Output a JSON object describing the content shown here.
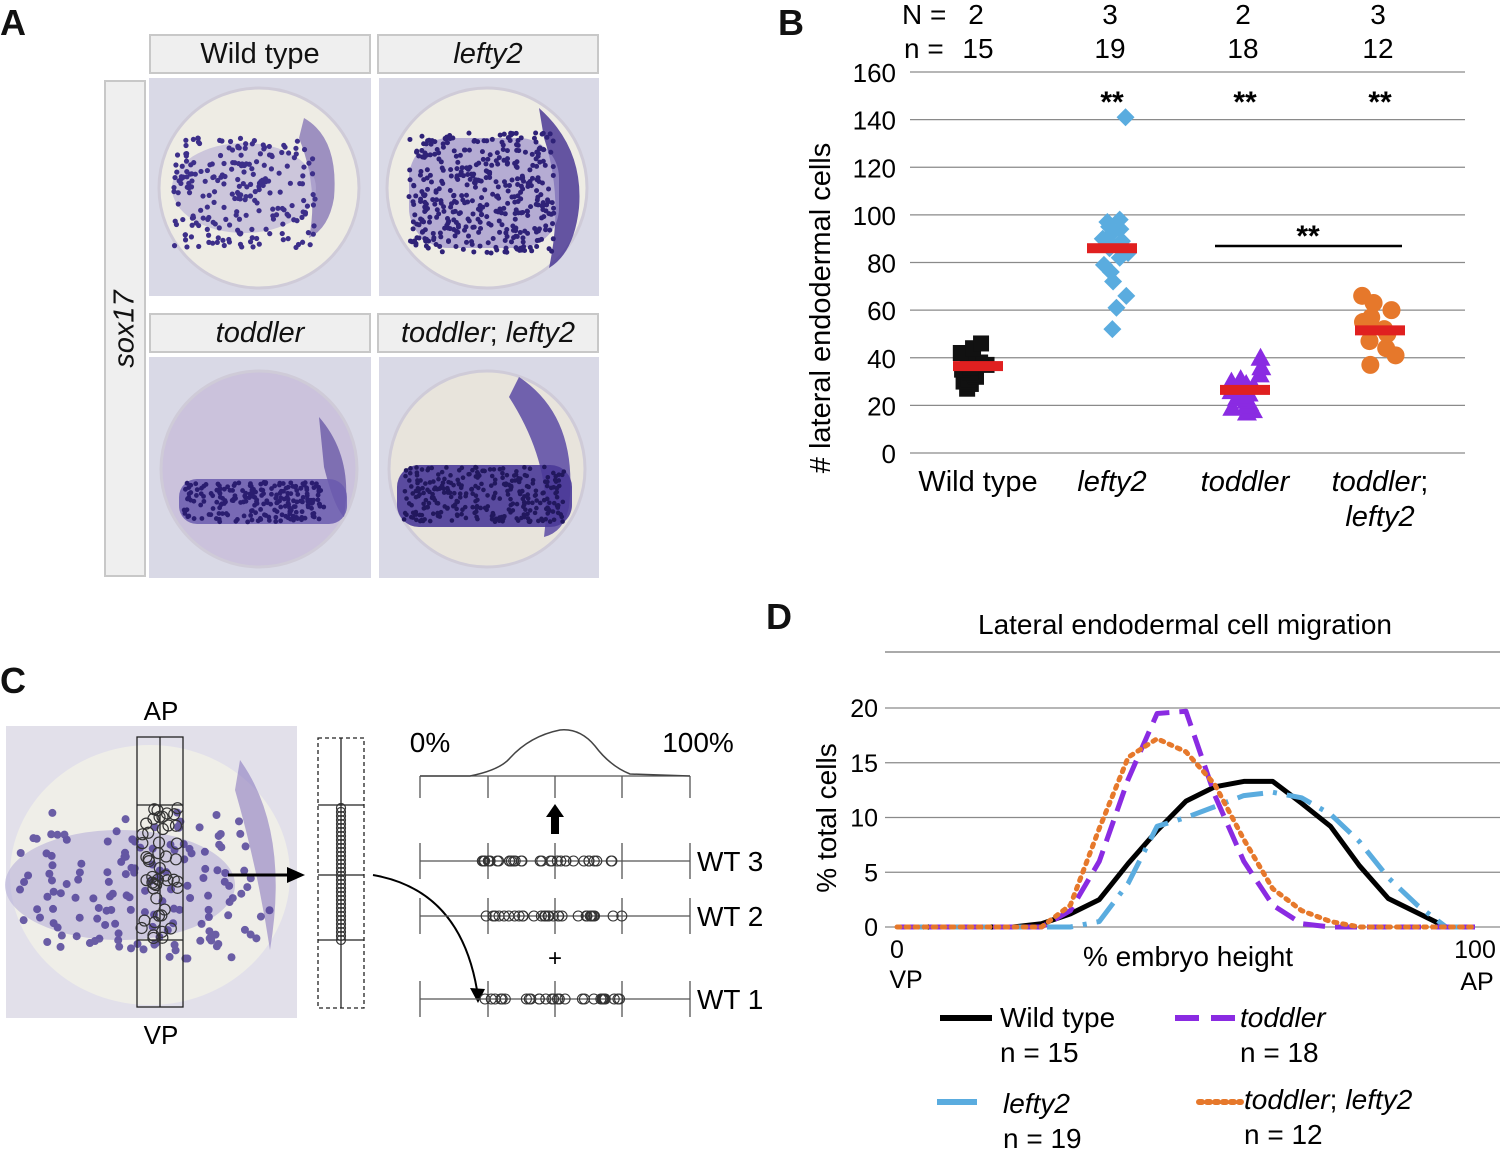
{
  "panels": {
    "a": "A",
    "b": "B",
    "c": "C",
    "d": "D"
  },
  "panel_a": {
    "side_label": "sox17",
    "headers": [
      {
        "text": "Wild type"
      },
      {
        "text": "lefty2"
      },
      {
        "text": "toddler"
      },
      {
        "main": "toddler",
        "sep": "; ",
        "second": "lefty2"
      }
    ]
  },
  "panel_c": {
    "ap": "AP",
    "vp": "VP",
    "pct0": "0%",
    "pct100": "100%",
    "plus": "+",
    "rows": [
      "WT 3",
      "WT 2",
      "WT 1"
    ]
  },
  "chart_data": [
    {
      "type": "scatter",
      "title": "",
      "xlabel": "",
      "ylabel": "# lateral endodermal cells",
      "ylim": [
        0,
        160
      ],
      "yticks": [
        0,
        20,
        40,
        60,
        80,
        100,
        120,
        140,
        160
      ],
      "grid": true,
      "header_labels": {
        "N": "N =",
        "n": "n ="
      },
      "categories": [
        {
          "label": "Wild type",
          "italic": false
        },
        {
          "label": "lefty2",
          "italic": true
        },
        {
          "label": "toddler",
          "italic": true
        },
        {
          "label_main": "toddler",
          "label_sep": ";",
          "label_second": "lefty2",
          "italic": true
        }
      ],
      "N": [
        "2",
        "3",
        "2",
        "3"
      ],
      "n": [
        "15",
        "19",
        "18",
        "12"
      ],
      "significance": [
        "",
        "**",
        "**",
        "**"
      ],
      "comparison": {
        "from": 2,
        "to": 3,
        "label": "**"
      },
      "series": [
        {
          "marker": "square",
          "color": "#111111",
          "mean": 36.5,
          "values": [
            27,
            29,
            30,
            31,
            32,
            33,
            34,
            35,
            36,
            37,
            38,
            40,
            42,
            44,
            46
          ]
        },
        {
          "marker": "diamond",
          "color": "#5aacdf",
          "mean": 86,
          "values": [
            141,
            52,
            61,
            66,
            72,
            76,
            79,
            82,
            84,
            86,
            87,
            88,
            89,
            90,
            92,
            94,
            95,
            97,
            98
          ]
        },
        {
          "marker": "triangle",
          "color": "#8a2be2",
          "mean": 26.5,
          "values": [
            17,
            18,
            19,
            20,
            21,
            22,
            23,
            24,
            25,
            26,
            27,
            28,
            29,
            30,
            31,
            33,
            36,
            40
          ]
        },
        {
          "marker": "circle",
          "color": "#e6782b",
          "mean": 51.5,
          "values": [
            37,
            41,
            44,
            47,
            50,
            52,
            53,
            55,
            57,
            60,
            63,
            66
          ]
        }
      ],
      "mean_color": "#e02020"
    },
    {
      "type": "line",
      "title": "Lateral endodermal cell migration",
      "xlabel": "% embryo height",
      "ylabel": "% total cells",
      "xlim": [
        0,
        100
      ],
      "ylim": [
        0,
        20
      ],
      "yticks": [
        0,
        5,
        10,
        15,
        20
      ],
      "x_tick_labels": {
        "min": "0",
        "max": "100",
        "min_sub": "VP",
        "max_sub": "AP"
      },
      "grid": true,
      "legend": [
        {
          "name": "Wild type",
          "italic": false,
          "n": "n = 15"
        },
        {
          "name": "toddler",
          "italic": true,
          "n": "n = 18"
        },
        {
          "name": "lefty2",
          "italic": true,
          "n": "n = 19"
        },
        {
          "name_main": "toddler",
          "name_sep": ";",
          "name_second": "lefty2",
          "italic": true,
          "n": "n = 12"
        }
      ],
      "x": [
        0,
        5,
        10,
        15,
        20,
        25,
        30,
        35,
        40,
        45,
        50,
        55,
        60,
        65,
        70,
        75,
        80,
        85,
        90,
        95,
        100
      ],
      "series": [
        {
          "name": "Wild type",
          "color": "#000000",
          "dash": "solid",
          "values": [
            0,
            0,
            0,
            0,
            0,
            0.3,
            1.2,
            2.5,
            5.8,
            8.8,
            11.5,
            12.8,
            13.3,
            13.3,
            11.3,
            9.2,
            5.6,
            2.6,
            1.3,
            0,
            0
          ]
        },
        {
          "name": "lefty2",
          "color": "#5aacdf",
          "dash": "dashdot",
          "values": [
            0,
            0,
            0,
            0,
            0,
            0,
            0,
            0.5,
            4.0,
            9.2,
            10.0,
            11.0,
            12.0,
            12.3,
            11.8,
            10.3,
            7.8,
            4.5,
            2.0,
            0,
            0
          ]
        },
        {
          "name": "toddler",
          "color": "#8a2be2",
          "dash": "dash",
          "values": [
            0,
            0,
            0,
            0,
            0,
            0,
            1.5,
            6.0,
            13.5,
            19.5,
            19.7,
            12.0,
            6.0,
            2.0,
            0.3,
            0,
            0,
            0,
            0,
            0,
            0
          ]
        },
        {
          "name": "toddler; lefty2",
          "color": "#e6782b",
          "dash": "dot",
          "values": [
            0,
            0,
            0,
            0,
            0,
            0,
            2.0,
            9.0,
            15.5,
            17.2,
            16.0,
            13.0,
            8.0,
            3.5,
            1.5,
            0.5,
            0,
            0,
            0,
            0,
            0
          ]
        }
      ]
    }
  ]
}
